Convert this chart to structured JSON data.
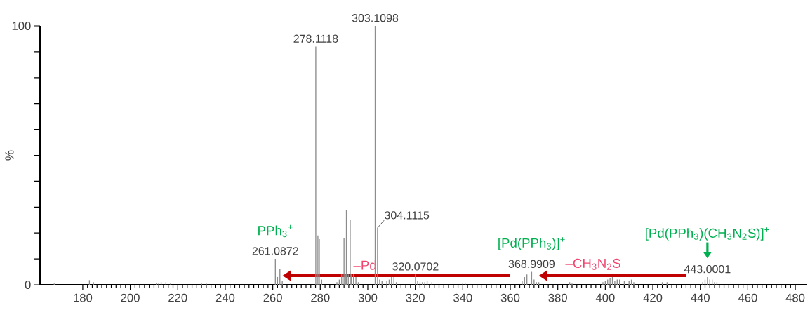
{
  "chart_data": {
    "type": "bar",
    "ylabel": "%",
    "color": "#8c8c8c",
    "x": [
      168,
      182.8,
      184.5,
      211,
      212,
      213,
      215,
      217,
      230,
      232,
      261.0872,
      262,
      263,
      264,
      278.1118,
      279,
      279.6,
      280.6,
      287,
      288,
      289,
      290,
      290.6,
      291,
      291.8,
      292.6,
      293,
      294,
      295,
      296,
      303.1098,
      304.1115,
      305,
      306,
      308,
      309,
      310,
      311,
      312,
      320.0702,
      321,
      322,
      323,
      324,
      325,
      327,
      340,
      341,
      365,
      366,
      367,
      368.9909,
      370,
      371,
      372,
      385,
      386,
      399,
      400,
      401,
      402,
      403,
      404,
      405,
      406,
      408,
      410,
      411,
      412,
      424,
      426,
      441,
      442,
      443.0001,
      444,
      445,
      446,
      447
    ],
    "values": [
      0.5,
      1.8,
      1,
      0.7,
      0.8,
      1,
      1,
      0.6,
      0.5,
      0.5,
      10,
      3,
      6,
      1.5,
      92,
      19,
      17.6,
      2,
      1,
      2,
      4,
      18,
      4,
      29,
      4,
      25,
      4,
      4,
      3,
      1,
      100,
      22,
      2,
      1.5,
      1.5,
      2,
      3,
      3,
      1,
      4,
      1.5,
      1,
      1,
      1,
      1.5,
      1,
      0.5,
      0.5,
      1.5,
      3,
      4,
      5,
      2,
      1,
      1,
      1,
      0.5,
      1,
      1.5,
      2,
      2.5,
      3,
      1.5,
      2,
      2,
      1.5,
      1.5,
      2,
      1,
      1,
      1,
      1,
      2,
      3,
      2,
      2,
      1,
      1
    ],
    "xlim": [
      162,
      485
    ],
    "ylim": [
      0,
      100
    ],
    "xticks": [
      180,
      200,
      220,
      240,
      260,
      280,
      300,
      320,
      340,
      360,
      380,
      400,
      420,
      440,
      460,
      480
    ],
    "yticks": [
      0,
      {
        "value": 10,
        "label": null
      },
      {
        "value": 20,
        "label": null
      },
      {
        "value": 30,
        "label": null
      },
      {
        "value": 40,
        "label": null
      },
      {
        "value": 50,
        "label": null
      },
      {
        "value": 60,
        "label": null
      },
      {
        "value": 70,
        "label": null
      },
      {
        "value": 80,
        "label": null
      },
      {
        "value": 90,
        "label": null
      },
      100
    ],
    "annotations": [
      {
        "text": "261.0872",
        "x": 261.0872,
        "y": 10
      },
      {
        "text": "278.1118",
        "x": 278.1118,
        "y": 92
      },
      {
        "text": "303.1098",
        "x": 303.1098,
        "y": 100
      },
      {
        "text": "304.1115",
        "x": 304.1115,
        "y": 22
      },
      {
        "text": "320.0702",
        "x": 320.0702,
        "y": 4
      },
      {
        "text": "368.9909",
        "x": 368.9909,
        "y": 5
      },
      {
        "text": "443.0001",
        "x": 443.0001,
        "y": 3
      },
      {
        "text": "PPh$_{3}$$^{+}$",
        "x": 261.0872,
        "y": 10
      },
      {
        "text": "[Pd(PPh$_{3}$)]$^{+}$",
        "x": 368.9909,
        "y": 5
      },
      {
        "text": "[Pd(PPh$_{3}$)(CH$_{3}$N$_{2}$S)]$^{+}$",
        "x": 443.0001,
        "y": 3
      },
      "–Pd",
      "–CH$_{3}$N$_{2}$S"
    ]
  }
}
